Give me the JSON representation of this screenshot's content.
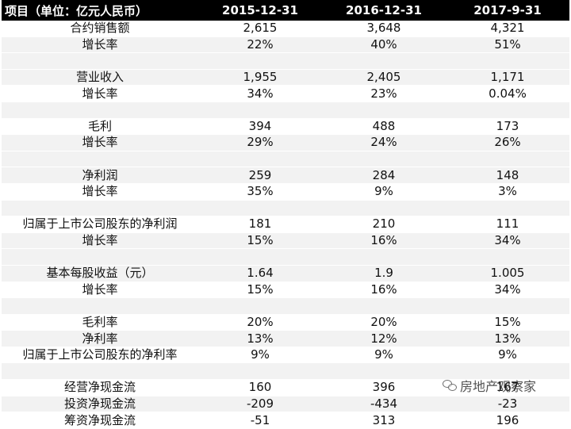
{
  "table": {
    "headers": [
      "项目（单位：亿元人民币）",
      "2015-12-31",
      "2016-12-31",
      "2017-9-31"
    ],
    "rows": [
      {
        "label": "合约销售额",
        "values": [
          "2,615",
          "3,648",
          "4,321"
        ]
      },
      {
        "label": "增长率",
        "values": [
          "22%",
          "40%",
          "51%"
        ]
      },
      {
        "label": "",
        "values": [
          "",
          "",
          ""
        ]
      },
      {
        "label": "营业收入",
        "values": [
          "1,955",
          "2,405",
          "1,171"
        ]
      },
      {
        "label": "增长率",
        "values": [
          "34%",
          "23%",
          "0.04%"
        ]
      },
      {
        "label": "",
        "values": [
          "",
          "",
          ""
        ]
      },
      {
        "label": "毛利",
        "values": [
          "394",
          "488",
          "173"
        ]
      },
      {
        "label": "增长率",
        "values": [
          "29%",
          "24%",
          "26%"
        ]
      },
      {
        "label": "",
        "values": [
          "",
          "",
          ""
        ]
      },
      {
        "label": "净利润",
        "values": [
          "259",
          "284",
          "148"
        ]
      },
      {
        "label": "增长率",
        "values": [
          "35%",
          "9%",
          "3%"
        ]
      },
      {
        "label": "",
        "values": [
          "",
          "",
          ""
        ]
      },
      {
        "label": "归属于上市公司股东的净利润",
        "values": [
          "181",
          "210",
          "111"
        ]
      },
      {
        "label": "增长率",
        "values": [
          "15%",
          "16%",
          "34%"
        ]
      },
      {
        "label": "",
        "values": [
          "",
          "",
          ""
        ]
      },
      {
        "label": "基本每股收益（元）",
        "values": [
          "1.64",
          "1.9",
          "1.005"
        ]
      },
      {
        "label": "增长率",
        "values": [
          "15%",
          "16%",
          "34%"
        ]
      },
      {
        "label": "",
        "values": [
          "",
          "",
          ""
        ]
      },
      {
        "label": "毛利率",
        "values": [
          "20%",
          "20%",
          "15%"
        ]
      },
      {
        "label": "净利率",
        "values": [
          "13%",
          "12%",
          "13%"
        ]
      },
      {
        "label": "归属于上市公司股东的净利率",
        "values": [
          "9%",
          "9%",
          "9%"
        ]
      },
      {
        "label": "",
        "values": [
          "",
          "",
          ""
        ]
      },
      {
        "label": "经营净现金流",
        "values": [
          "160",
          "396",
          "167"
        ]
      },
      {
        "label": "投资净现金流",
        "values": [
          "-209",
          "-434",
          "-23"
        ]
      },
      {
        "label": "筹资净现金流",
        "values": [
          "-51",
          "313",
          "196"
        ]
      }
    ]
  },
  "watermark": {
    "icon": "wechat-icon",
    "text": "房地产观察家"
  },
  "colors": {
    "header_bg": "#000000",
    "header_text": "#ffffff",
    "stripe": "#f2f2f2"
  }
}
